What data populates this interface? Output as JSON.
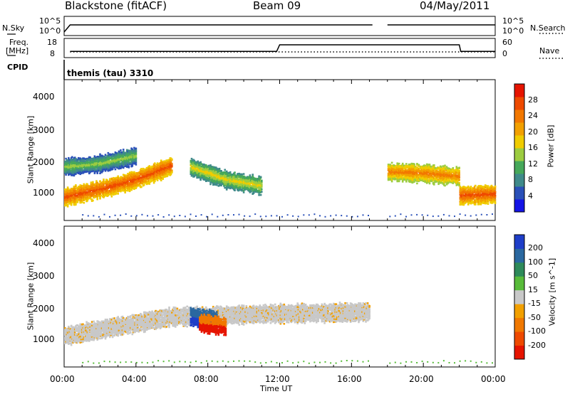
{
  "header": {
    "title": "Blackstone (fitACF)",
    "beam": "Beam 09",
    "date": "04/May/2011"
  },
  "status_panels": {
    "nsky_label": "N.Sky",
    "nsearch_label": "N.Search",
    "freq_label_line1": "Freq.",
    "freq_label_line2": "[MHz]",
    "nave_label": "Nave",
    "cpid_label": "CPID",
    "cpid_text": "themis (tau) 3310",
    "noise_ticks": [
      "10^5",
      "10^0"
    ],
    "noise_ticks_right": [
      "10^5",
      "10^0"
    ],
    "freq_ticks": [
      "18",
      "8"
    ],
    "nave_ticks": [
      "60",
      "0"
    ]
  },
  "colorbars": {
    "power": {
      "label": "Power [dB]",
      "ticks": [
        "28",
        "24",
        "20",
        "16",
        "12",
        "8",
        "4"
      ],
      "colors": [
        "#1414e6",
        "#2a50b8",
        "#3f8a8a",
        "#46a85a",
        "#9ccc40",
        "#f0cc00",
        "#f2a000",
        "#f27800",
        "#ee4a00",
        "#e61400"
      ]
    },
    "velocity": {
      "label": "Velocity [m s^-1]",
      "ticks": [
        "200",
        "100",
        "50",
        "15",
        "-15",
        "-50",
        "-100",
        "-200"
      ],
      "colors": [
        "#1e3ec8",
        "#2a68a0",
        "#2e8a5a",
        "#58bb3a",
        "#c8c8c8",
        "#f2a000",
        "#f07800",
        "#ee4a00",
        "#e61400"
      ]
    }
  },
  "chart_data": [
    {
      "type": "line",
      "panel": "noise",
      "title": "",
      "ylabel": "N.Sky",
      "ylabel_right": "N.Search",
      "x_range": [
        "00:00",
        "24:00"
      ],
      "series": [
        {
          "name": "N.Sky",
          "x": [
            "00:00",
            "00:20",
            "06:00",
            "12:00",
            "17:10"
          ],
          "values": [
            "10^0",
            "10^4",
            "10^4",
            "10^4",
            "10^4"
          ]
        },
        {
          "name": "N.Sky",
          "x": [
            "18:00",
            "24:00"
          ],
          "values": [
            "10^4",
            "10^4"
          ]
        }
      ],
      "gaps": [
        [
          "17:10",
          "18:00"
        ]
      ]
    },
    {
      "type": "line",
      "panel": "frequency",
      "ylabel": "Freq. [MHz]",
      "ylabel_right": "Nave",
      "ylim": [
        8,
        18
      ],
      "series": [
        {
          "name": "Freq.",
          "x": [
            "00:20",
            "11:50",
            "12:00",
            "17:10",
            "18:00",
            "22:00",
            "22:05",
            "24:00"
          ],
          "values": [
            10.5,
            10.5,
            14.5,
            14.5,
            14.5,
            14.5,
            10.5,
            10.5
          ]
        },
        {
          "name": "Nave",
          "x": [
            "00:20",
            "24:00"
          ],
          "values": [
            14,
            14
          ]
        }
      ]
    },
    {
      "type": "heatmap",
      "panel": "power",
      "ylabel": "Slant Range [km]",
      "xlabel": "",
      "x_range": [
        "00:00",
        "24:00"
      ],
      "ylim": [
        180,
        4600
      ],
      "yticks": [
        1000,
        2000,
        3000,
        4000
      ],
      "colorbar": "Power [dB]",
      "colorbar_range": [
        0,
        30
      ],
      "features": [
        {
          "name": "main-backscatter-band",
          "t": [
            0.0,
            2.0,
            4.0,
            6.0
          ],
          "range_km": [
            950,
            1200,
            1500,
            1950
          ],
          "power_db": 26
        },
        {
          "name": "upper-band",
          "t": [
            0.0,
            2.0,
            4.0
          ],
          "range_km": [
            1900,
            2000,
            2250
          ],
          "power_db": 14
        },
        {
          "name": "afternoon-arc",
          "t": [
            7.0,
            9.0,
            11.0
          ],
          "range_km": [
            1900,
            1500,
            1300
          ],
          "power_db": 18
        },
        {
          "name": "evening-band",
          "t": [
            18.0,
            20.0,
            22.0
          ],
          "range_km": [
            1750,
            1700,
            1600
          ],
          "power_db": 22
        },
        {
          "name": "late-band",
          "t": [
            22.0,
            24.0
          ],
          "range_km": [
            1000,
            1050
          ],
          "power_db": 26
        }
      ]
    },
    {
      "type": "heatmap",
      "panel": "velocity",
      "ylabel": "Slant Range [km]",
      "xlabel": "Time UT",
      "x_range": [
        "00:00",
        "24:00"
      ],
      "ylim": [
        180,
        4600
      ],
      "yticks": [
        1000,
        2000,
        3000,
        4000
      ],
      "xticks": [
        "00:00",
        "04:00",
        "08:00",
        "12:00",
        "16:00",
        "20:00",
        "00:00"
      ],
      "colorbar": "Velocity [m s^-1]",
      "colorbar_range": [
        -200,
        200
      ],
      "features": [
        {
          "name": "ground-scatter-band",
          "t": [
            0.0,
            6.0,
            12.0,
            17.0
          ],
          "range_km": [
            1200,
            1800,
            1900,
            1950
          ],
          "velocity": 0
        },
        {
          "name": "positive-velocity-patch",
          "t": [
            7.0,
            8.5
          ],
          "range_km": [
            1800,
            1700
          ],
          "velocity": 150
        },
        {
          "name": "negative-velocity-patch",
          "t": [
            7.5,
            9.0
          ],
          "range_km": [
            1600,
            1500
          ],
          "velocity": -150
        }
      ]
    }
  ],
  "axes": {
    "time_label": "Time UT",
    "range_label": "Slant Range [km]",
    "range_ticks": [
      "4000",
      "3000",
      "2000",
      "1000"
    ],
    "time_ticks": [
      "00:00",
      "04:00",
      "08:00",
      "12:00",
      "16:00",
      "20:00",
      "00:00"
    ]
  }
}
